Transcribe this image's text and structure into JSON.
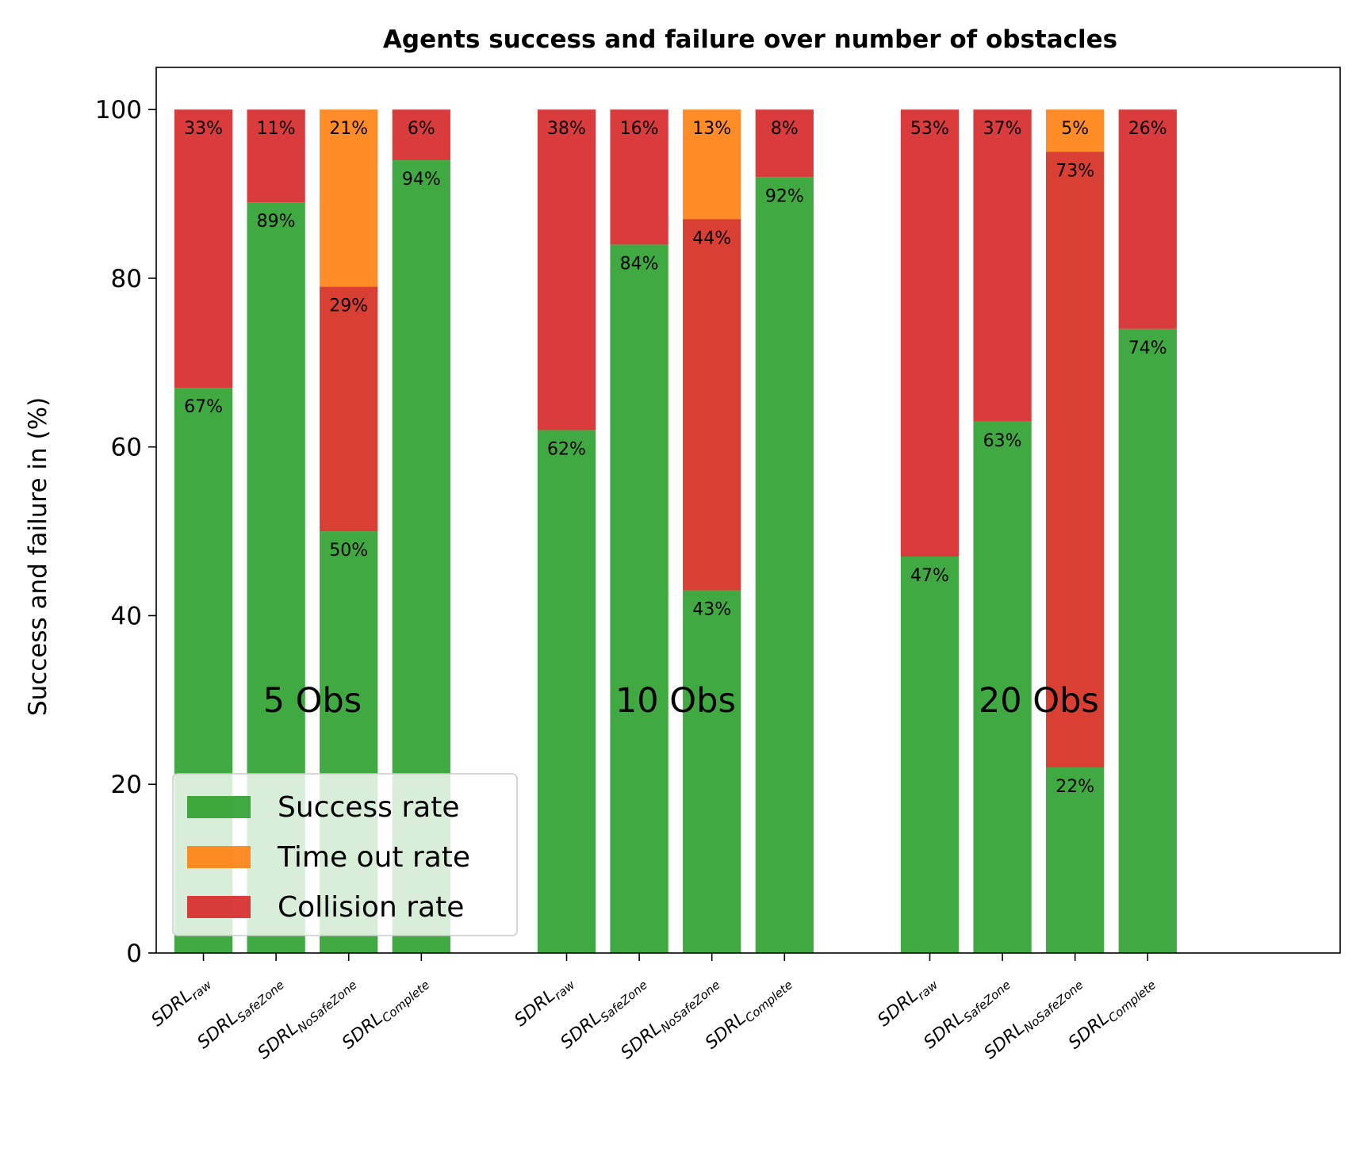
{
  "chart_data": {
    "type": "bar",
    "stacked": true,
    "title": "Agents success and failure over number of obstacles",
    "ylabel": "Success and failure in (%)",
    "xlabel": "",
    "ylim": [
      0,
      105
    ],
    "yticks": [
      0,
      20,
      40,
      60,
      80,
      100
    ],
    "grid": false,
    "legend_position": "lower-left",
    "series": [
      {
        "name": "Success rate",
        "color": "#2ca02c"
      },
      {
        "name": "Time out rate",
        "color": "#ff7f0e"
      },
      {
        "name": "Collision rate",
        "color": "#d62728"
      }
    ],
    "groups": [
      {
        "label": "5 Obs",
        "bars": [
          {
            "base": "SDRL",
            "sub": "raw",
            "success": 67,
            "timeout": 0,
            "collision": 33,
            "labels": {
              "success": "67%",
              "collision": "33%"
            }
          },
          {
            "base": "SDRL",
            "sub": "SafeZone",
            "success": 89,
            "timeout": 0,
            "collision": 11,
            "labels": {
              "success": "89%",
              "collision": "11%"
            }
          },
          {
            "base": "SDRL",
            "sub": "NoSafeZone",
            "success": 50,
            "timeout": 21,
            "collision": 29,
            "labels": {
              "success": "50%",
              "collision": "29%",
              "timeout": "21%"
            }
          },
          {
            "base": "SDRL",
            "sub": "Complete",
            "success": 94,
            "timeout": 0,
            "collision": 6,
            "labels": {
              "success": "94%",
              "collision": "6%"
            }
          }
        ]
      },
      {
        "label": "10 Obs",
        "bars": [
          {
            "base": "SDRL",
            "sub": "raw",
            "success": 62,
            "timeout": 0,
            "collision": 38,
            "labels": {
              "success": "62%",
              "collision": "38%"
            }
          },
          {
            "base": "SDRL",
            "sub": "SafeZone",
            "success": 84,
            "timeout": 0,
            "collision": 16,
            "labels": {
              "success": "84%",
              "collision": "16%"
            }
          },
          {
            "base": "SDRL",
            "sub": "NoSafeZone",
            "success": 43,
            "timeout": 13,
            "collision": 44,
            "labels": {
              "success": "43%",
              "collision": "44%",
              "timeout": "13%"
            }
          },
          {
            "base": "SDRL",
            "sub": "Complete",
            "success": 92,
            "timeout": 0,
            "collision": 8,
            "labels": {
              "success": "92%",
              "collision": "8%"
            }
          }
        ]
      },
      {
        "label": "20 Obs",
        "bars": [
          {
            "base": "SDRL",
            "sub": "raw",
            "success": 47,
            "timeout": 0,
            "collision": 53,
            "labels": {
              "success": "47%",
              "collision": "53%"
            }
          },
          {
            "base": "SDRL",
            "sub": "SafeZone",
            "success": 63,
            "timeout": 0,
            "collision": 37,
            "labels": {
              "success": "63%",
              "collision": "37%"
            }
          },
          {
            "base": "SDRL",
            "sub": "NoSafeZone",
            "success": 22,
            "timeout": 5,
            "collision": 73,
            "labels": {
              "success": "22%",
              "collision": "73%",
              "timeout": "5%"
            }
          },
          {
            "base": "SDRL",
            "sub": "Complete",
            "success": 74,
            "timeout": 0,
            "collision": 26,
            "labels": {
              "success": "74%",
              "collision": "26%"
            }
          }
        ]
      }
    ]
  }
}
